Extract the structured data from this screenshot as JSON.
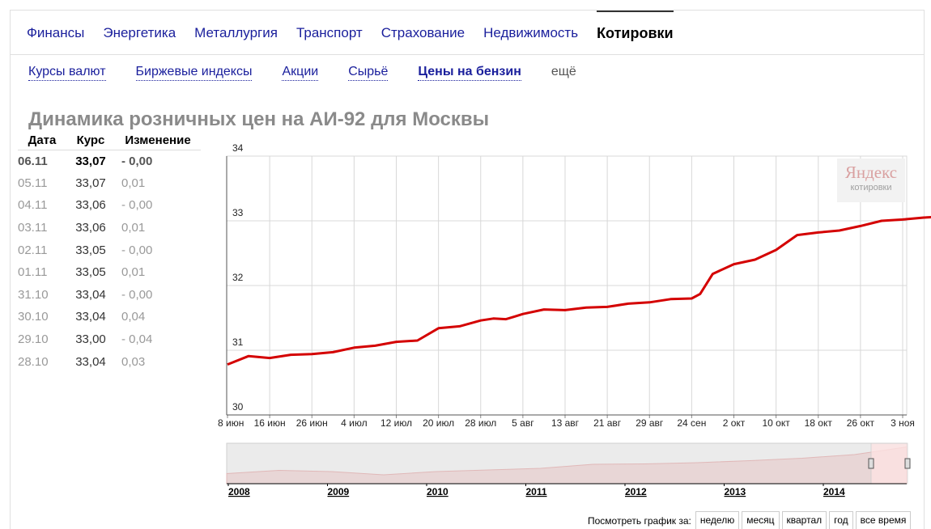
{
  "top_nav": {
    "items": [
      "Финансы",
      "Энергетика",
      "Металлургия",
      "Транспорт",
      "Страхование",
      "Недвижимость"
    ],
    "active": "Котировки"
  },
  "sub_nav": {
    "items": [
      "Курсы валют",
      "Биржевые индексы",
      "Акции",
      "Сырьё"
    ],
    "active": "Цены на бензин",
    "more": "ещё"
  },
  "page_title": "Динамика розничных цен на АИ-92 для Москвы",
  "quotes_table": {
    "headers": [
      "Дата",
      "Курс",
      "Изменение"
    ],
    "rows": [
      {
        "date": "06.11",
        "rate": "33,07",
        "change": "- 0,00"
      },
      {
        "date": "05.11",
        "rate": "33,07",
        "change": "0,01"
      },
      {
        "date": "04.11",
        "rate": "33,06",
        "change": "- 0,00"
      },
      {
        "date": "03.11",
        "rate": "33,06",
        "change": "0,01"
      },
      {
        "date": "02.11",
        "rate": "33,05",
        "change": "- 0,00"
      },
      {
        "date": "01.11",
        "rate": "33,05",
        "change": "0,01"
      },
      {
        "date": "31.10",
        "rate": "33,04",
        "change": "- 0,00"
      },
      {
        "date": "30.10",
        "rate": "33,04",
        "change": "0,04"
      },
      {
        "date": "29.10",
        "rate": "33,00",
        "change": "- 0,04"
      },
      {
        "date": "28.10",
        "rate": "33,04",
        "change": "0,03"
      }
    ]
  },
  "watermark": {
    "logo": "Яндекс",
    "sub": "котировки"
  },
  "chart_data": {
    "type": "line",
    "ylim": [
      30,
      34
    ],
    "yticks": [
      "34",
      "33",
      "32",
      "31",
      "30"
    ],
    "xticks": [
      "8 июн",
      "16 июн",
      "26 июн",
      "4 июл",
      "12 июл",
      "20 июл",
      "28 июл",
      "5 авг",
      "13 авг",
      "21 авг",
      "29 авг",
      "24 сен",
      "2 окт",
      "10 окт",
      "18 окт",
      "26 окт",
      "3 ноя"
    ],
    "grid": true,
    "line_color": "#d40000",
    "series": [
      {
        "x": [
          0,
          0.5,
          1,
          1.5,
          2,
          2.5,
          3,
          3.5,
          4,
          4.5,
          5,
          5.5,
          6,
          6.3,
          6.6,
          6.8,
          7,
          7.5,
          8,
          8.5,
          9,
          9.5,
          10,
          10.5,
          11,
          11.2,
          11.5,
          12,
          12.5,
          13,
          13.5,
          14,
          14.5,
          15,
          15.5,
          16,
          16.5,
          17
        ],
        "y": [
          30.78,
          30.91,
          30.88,
          30.93,
          30.94,
          30.97,
          31.04,
          31.07,
          31.13,
          31.15,
          31.34,
          31.37,
          31.46,
          31.49,
          31.48,
          31.52,
          31.56,
          31.63,
          31.62,
          31.66,
          31.67,
          31.72,
          31.74,
          31.79,
          31.8,
          31.87,
          32.18,
          32.33,
          32.4,
          32.55,
          32.78,
          32.82,
          32.85,
          32.92,
          33.0,
          33.02,
          33.05,
          33.07
        ]
      }
    ]
  },
  "navigator": {
    "years": [
      "2008",
      "2009",
      "2010",
      "2011",
      "2012",
      "2013",
      "2014"
    ],
    "values": [
      26.5,
      27.3,
      27.0,
      26.2,
      27.0,
      27.4,
      27.8,
      28.8,
      28.9,
      29.2,
      29.7,
      30.3,
      31.2,
      33.07
    ]
  },
  "period_selector": {
    "label": "Посмотреть график за:",
    "options": [
      "неделю",
      "месяц",
      "квартал",
      "год",
      "все время"
    ]
  }
}
